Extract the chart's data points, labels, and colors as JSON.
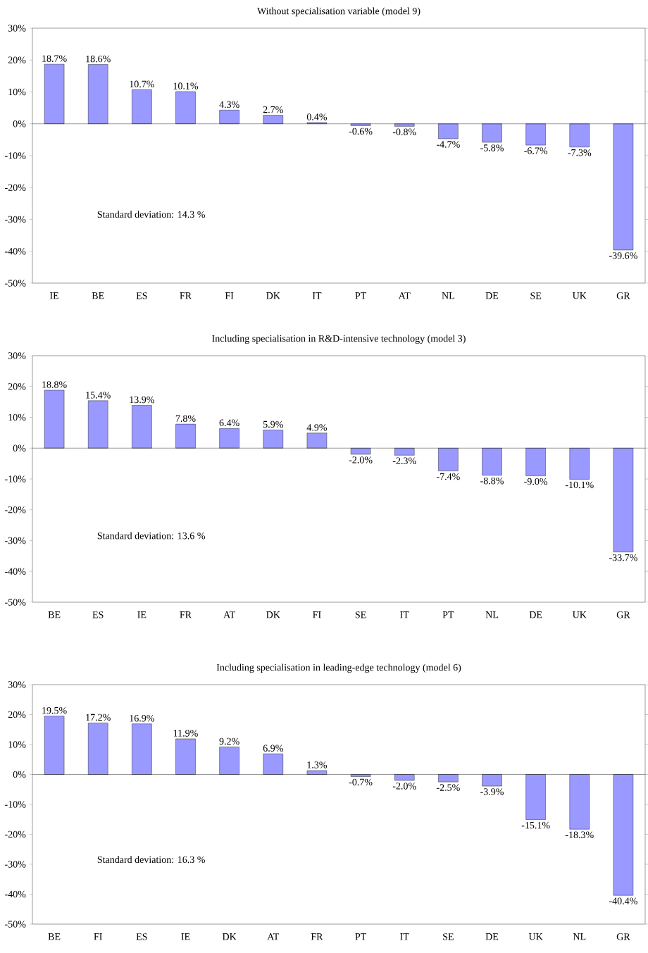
{
  "chart_data": [
    {
      "type": "bar",
      "title": "Without specialisation variable (model 9)",
      "categories": [
        "IE",
        "BE",
        "ES",
        "FR",
        "FI",
        "DK",
        "IT",
        "PT",
        "AT",
        "NL",
        "DE",
        "SE",
        "UK",
        "GR"
      ],
      "values": [
        18.7,
        18.6,
        10.7,
        10.1,
        4.3,
        2.7,
        0.4,
        -0.6,
        -0.8,
        -4.7,
        -5.8,
        -6.7,
        -7.3,
        -39.6
      ],
      "value_labels": [
        "18.7%",
        "18.6%",
        "10.7%",
        "10.1%",
        "4.3%",
        "2.7%",
        "0.4%",
        "-0.6%",
        "-0.8%",
        "-4.7%",
        "-5.8%",
        "-6.7%",
        "-7.3%",
        "-39.6%"
      ],
      "color": "#9999ff",
      "ylim": [
        -50,
        30
      ],
      "yticks": [
        {
          "value": -50,
          "label": "-50%"
        },
        {
          "value": -40,
          "label": "-40%"
        },
        {
          "value": -30,
          "label": "-30%"
        },
        {
          "value": -20,
          "label": "-20%"
        },
        {
          "value": -10,
          "label": "-10%"
        },
        {
          "value": 0,
          "label": "0%"
        },
        {
          "value": 10,
          "label": "10%"
        },
        {
          "value": 20,
          "label": "20%"
        },
        {
          "value": 30,
          "label": "30%"
        }
      ],
      "annotations": [
        "Standard deviation: 14.3 %"
      ]
    },
    {
      "type": "bar",
      "title": "Including specialisation in R&D-intensive technology (model 3)",
      "categories": [
        "BE",
        "ES",
        "IE",
        "FR",
        "AT",
        "DK",
        "FI",
        "SE",
        "IT",
        "PT",
        "NL",
        "DE",
        "UK",
        "GR"
      ],
      "values": [
        18.8,
        15.4,
        13.9,
        7.8,
        6.4,
        5.9,
        4.9,
        -2.0,
        -2.3,
        -7.4,
        -8.8,
        -9.0,
        -10.1,
        -33.7
      ],
      "value_labels": [
        "18.8%",
        "15.4%",
        "13.9%",
        "7.8%",
        "6.4%",
        "5.9%",
        "4.9%",
        "-2.0%",
        "-2.3%",
        "-7.4%",
        "-8.8%",
        "-9.0%",
        "-10.1%",
        "-33.7%"
      ],
      "color": "#9999ff",
      "ylim": [
        -50,
        30
      ],
      "yticks": [
        {
          "value": -50,
          "label": "-50%"
        },
        {
          "value": -40,
          "label": "-40%"
        },
        {
          "value": -30,
          "label": "-30%"
        },
        {
          "value": -20,
          "label": "-20%"
        },
        {
          "value": -10,
          "label": "-10%"
        },
        {
          "value": 0,
          "label": "0%"
        },
        {
          "value": 10,
          "label": "10%"
        },
        {
          "value": 20,
          "label": "20%"
        },
        {
          "value": 30,
          "label": "30%"
        }
      ],
      "annotations": [
        "Standard deviation: 13.6 %"
      ]
    },
    {
      "type": "bar",
      "title": "Including specialisation in leading-edge technology (model 6)",
      "categories": [
        "BE",
        "FI",
        "ES",
        "IE",
        "DK",
        "AT",
        "FR",
        "PT",
        "IT",
        "SE",
        "DE",
        "UK",
        "NL",
        "GR"
      ],
      "values": [
        19.5,
        17.2,
        16.9,
        11.9,
        9.2,
        6.9,
        1.3,
        -0.7,
        -2.0,
        -2.5,
        -3.9,
        -15.1,
        -18.3,
        -40.4
      ],
      "value_labels": [
        "19.5%",
        "17.2%",
        "16.9%",
        "11.9%",
        "9.2%",
        "6.9%",
        "1.3%",
        "-0.7%",
        "-2.0%",
        "-2.5%",
        "-3.9%",
        "-15.1%",
        "-18.3%",
        "-40.4%"
      ],
      "color": "#9999ff",
      "ylim": [
        -50,
        30
      ],
      "yticks": [
        {
          "value": -50,
          "label": "-50%"
        },
        {
          "value": -40,
          "label": "-40%"
        },
        {
          "value": -30,
          "label": "-30%"
        },
        {
          "value": -20,
          "label": "-20%"
        },
        {
          "value": -10,
          "label": "-10%"
        },
        {
          "value": 0,
          "label": "0%"
        },
        {
          "value": 10,
          "label": "10%"
        },
        {
          "value": 20,
          "label": "20%"
        },
        {
          "value": 30,
          "label": "30%"
        }
      ],
      "annotations": [
        "Standard deviation: 16.3 %"
      ]
    }
  ]
}
